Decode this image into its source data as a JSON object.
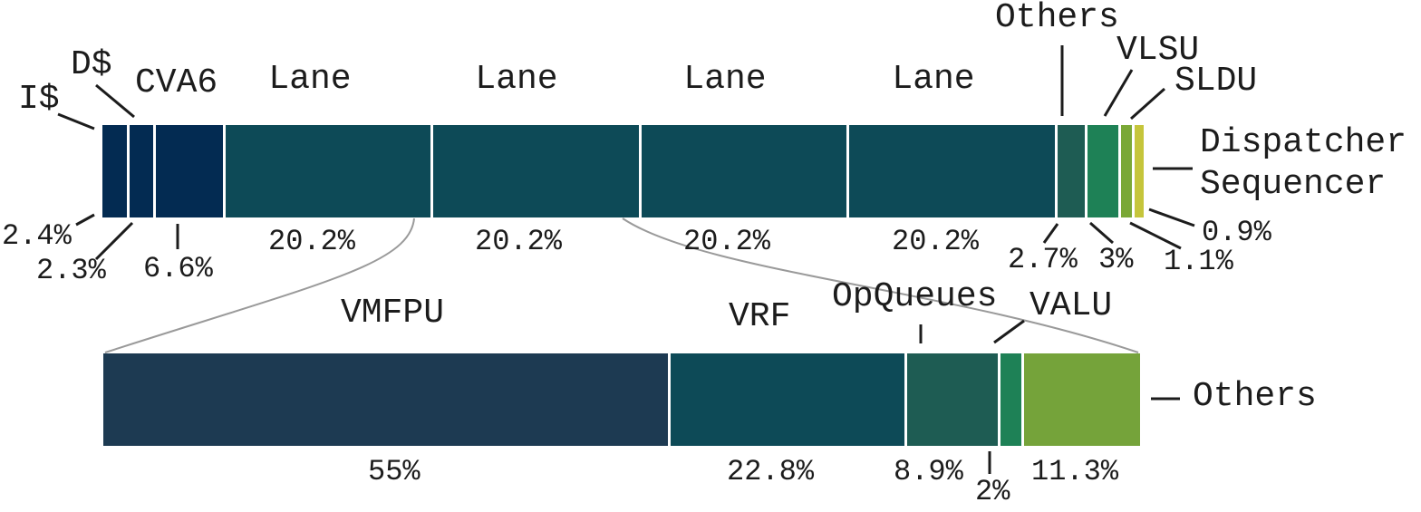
{
  "figure": {
    "kind": "hardware-area-breakdown",
    "colors": {
      "navy": "#032b52",
      "teal": "#0d4a57",
      "dark_green": "#1e5c53",
      "green": "#1e8156",
      "olive": "#7aa836",
      "yellow": "#c5c53b",
      "slate_navy": "#1d3a52",
      "olive_light": "#75a33a",
      "connector_gray": "#9a9a9a",
      "text_black": "#1c1c1c"
    }
  },
  "chart_data": {
    "type": "bar",
    "subtype": "proportional-stacked-horizontal-with-zoom-callout",
    "unit": "%",
    "top_bar": {
      "segments": [
        {
          "name": "I$",
          "value": 2.4,
          "pct_label": "2.4%",
          "color": "#032b52"
        },
        {
          "name": "D$",
          "value": 2.3,
          "pct_label": "2.3%",
          "color": "#032b52"
        },
        {
          "name": "CVA6",
          "value": 6.6,
          "pct_label": "6.6%",
          "color": "#032b52"
        },
        {
          "name": "Lane",
          "value": 20.2,
          "pct_label": "20.2%",
          "color": "#0d4a57"
        },
        {
          "name": "Lane",
          "value": 20.2,
          "pct_label": "20.2%",
          "color": "#0d4a57"
        },
        {
          "name": "Lane",
          "value": 20.2,
          "pct_label": "20.2%",
          "color": "#0d4a57"
        },
        {
          "name": "Lane",
          "value": 20.2,
          "pct_label": "20.2%",
          "color": "#0d4a57"
        },
        {
          "name": "Others",
          "value": 2.7,
          "pct_label": "2.7%",
          "color": "#1e5c53"
        },
        {
          "name": "VLSU",
          "value": 3,
          "pct_label": "3%",
          "color": "#1e8156"
        },
        {
          "name": "SLDU",
          "value": 1.1,
          "pct_label": "1.1%",
          "color": "#7aa836"
        },
        {
          "name": "Dispatcher Sequencer",
          "name_lines": [
            "Dispatcher",
            "Sequencer"
          ],
          "value": 0.9,
          "pct_label": "0.9%",
          "color": "#c5c53b"
        }
      ]
    },
    "bottom_bar": {
      "zoom_of": "Lane",
      "segments": [
        {
          "name": "VMFPU",
          "value": 55,
          "pct_label": "55%",
          "color": "#1d3a52"
        },
        {
          "name": "VRF",
          "value": 22.8,
          "pct_label": "22.8%",
          "color": "#0d4a57"
        },
        {
          "name": "OpQueues",
          "value": 8.9,
          "pct_label": "8.9%",
          "color": "#1e5c53"
        },
        {
          "name": "VALU",
          "value": 2,
          "pct_label": "2%",
          "color": "#1e8156"
        },
        {
          "name": "Others",
          "value": 11.3,
          "pct_label": "11.3%",
          "color": "#75a33a"
        }
      ]
    }
  }
}
